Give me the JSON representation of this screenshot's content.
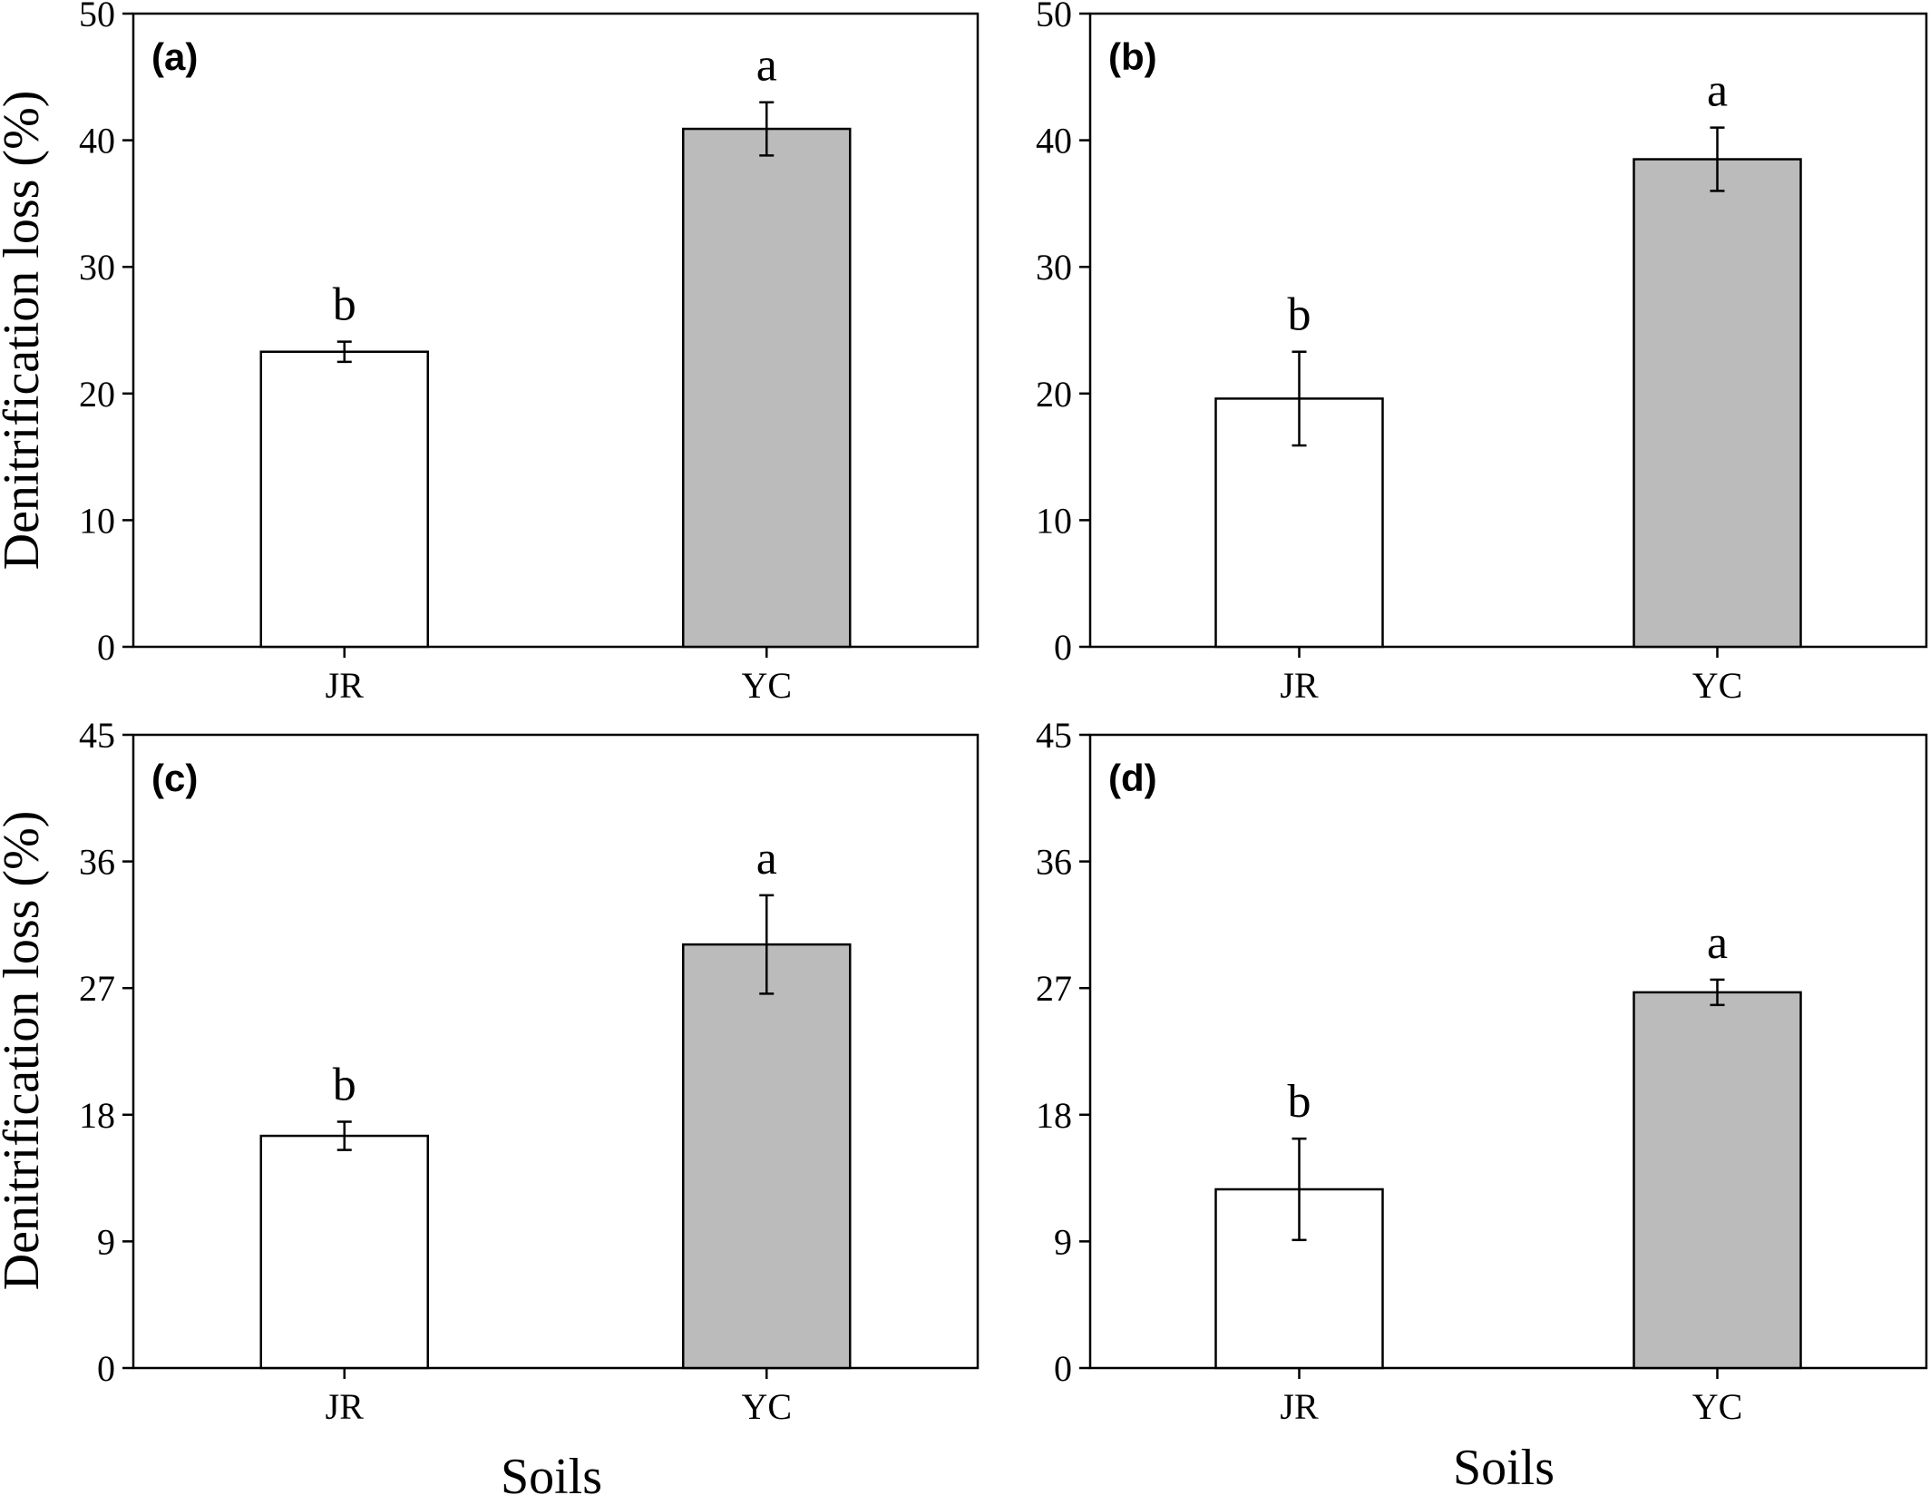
{
  "figure": {
    "ylabel": "Denitrification loss (%)",
    "xlabel": "Soils"
  },
  "colors": {
    "bar_JR": "#ffffff",
    "bar_YC": "#bbbbbb",
    "stroke": "#000000"
  },
  "chart_data": [
    {
      "type": "bar",
      "panel": "(a)",
      "categories": [
        "JR",
        "YC"
      ],
      "values": [
        23.3,
        40.9
      ],
      "errors": [
        0.8,
        2.1
      ],
      "significance": [
        "b",
        "a"
      ],
      "ylim": [
        0,
        50
      ],
      "yticks": [
        0,
        10,
        20,
        30,
        40,
        50
      ],
      "ylabel": "Denitrification loss (%)"
    },
    {
      "type": "bar",
      "panel": "(b)",
      "categories": [
        "JR",
        "YC"
      ],
      "values": [
        19.6,
        38.5
      ],
      "errors": [
        3.7,
        2.5
      ],
      "significance": [
        "b",
        "a"
      ],
      "ylim": [
        0,
        50
      ],
      "yticks": [
        0,
        10,
        20,
        30,
        40,
        50
      ]
    },
    {
      "type": "bar",
      "panel": "(c)",
      "categories": [
        "JR",
        "YC"
      ],
      "values": [
        16.5,
        30.1
      ],
      "errors": [
        1.0,
        3.5
      ],
      "significance": [
        "b",
        "a"
      ],
      "ylim": [
        0,
        45
      ],
      "yticks": [
        0,
        9,
        18,
        27,
        36,
        45
      ],
      "ylabel": "Denitrification loss (%)",
      "xlabel": "Soils"
    },
    {
      "type": "bar",
      "panel": "(d)",
      "categories": [
        "JR",
        "YC"
      ],
      "values": [
        12.7,
        26.7
      ],
      "errors": [
        3.6,
        0.9
      ],
      "significance": [
        "b",
        "a"
      ],
      "ylim": [
        0,
        45
      ],
      "yticks": [
        0,
        9,
        18,
        27,
        36,
        45
      ],
      "xlabel": "Soils"
    }
  ]
}
